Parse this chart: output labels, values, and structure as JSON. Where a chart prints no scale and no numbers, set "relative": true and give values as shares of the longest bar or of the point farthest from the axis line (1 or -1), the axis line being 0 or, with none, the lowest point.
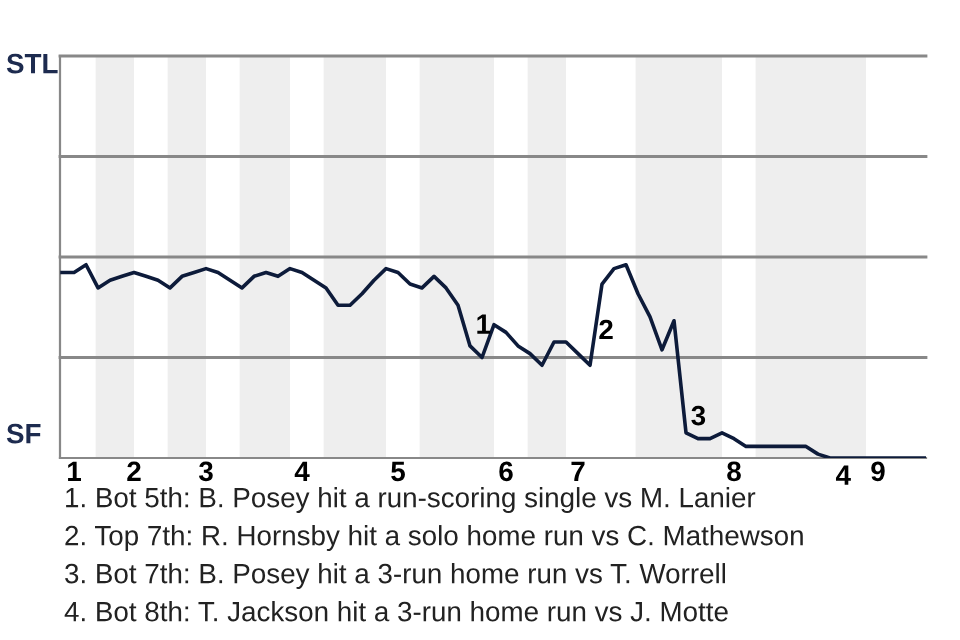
{
  "chart_data": {
    "type": "line",
    "relative": true,
    "categories": [
      null,
      "1",
      null,
      null,
      null,
      null,
      "2",
      null,
      null,
      null,
      null,
      null,
      "3",
      null,
      null,
      null,
      null,
      null,
      null,
      null,
      "4",
      null,
      null,
      null,
      null,
      null,
      null,
      null,
      "5",
      null,
      null,
      null,
      null,
      null,
      null,
      null,
      null,
      "6",
      null,
      null,
      null,
      null,
      null,
      "7",
      null,
      null,
      null,
      null,
      null,
      null,
      null,
      null,
      null,
      null,
      null,
      null,
      "8",
      null,
      null,
      null,
      null,
      null,
      null,
      null,
      null,
      null,
      null,
      null,
      "9",
      null,
      null,
      null,
      null
    ],
    "series": [
      {
        "color": "#0d1b3a",
        "values": [
          0.96,
          0.96,
          1,
          0.88,
          0.92,
          0.94,
          0.96,
          0.94,
          0.92,
          0.88,
          0.94,
          0.96,
          0.98,
          0.96,
          0.92,
          0.88,
          0.94,
          0.96,
          0.94,
          0.98,
          0.96,
          0.92,
          0.88,
          0.79,
          0.79,
          0.85,
          0.92,
          0.98,
          0.96,
          0.9,
          0.88,
          0.94,
          0.88,
          0.79,
          0.58,
          0.52,
          0.69,
          0.65,
          0.58,
          0.54,
          0.48,
          0.6,
          0.6,
          0.54,
          0.48,
          0.9,
          0.98,
          1,
          0.85,
          0.73,
          0.56,
          0.71,
          0.13,
          0.1,
          0.1,
          0.13,
          0.1,
          0.06,
          0.06,
          0.06,
          0.06,
          0.06,
          0.06,
          0.02,
          0,
          0,
          0,
          0,
          0,
          0,
          0,
          0,
          0
        ],
        "name": null
      }
    ],
    "marker": "none",
    "line_style": "solid",
    "ref_lines": [
      {
        "axis": "y",
        "value": 0.52,
        "color": "#888888"
      },
      {
        "axis": "y",
        "value": 1.04,
        "color": "#888888"
      },
      {
        "axis": "y",
        "value": 1.56,
        "color": "#888888"
      },
      {
        "axis": "y",
        "value": 2.08,
        "color": "#888888"
      }
    ],
    "annotations": [
      "STL",
      "SF",
      "1",
      "2",
      "3",
      "4",
      "1. Bot 5th: B. Posey hit a run-scoring single vs M. Lanier",
      "2. Top 7th: R. Hornsby hit a solo home run vs C. Mathewson",
      "3. Bot 7th: B. Posey hit a 3-run home run vs T. Worrell",
      "4. Bot 8th: T. Jackson hit a 3-run home run vs J. Motte"
    ]
  }
}
